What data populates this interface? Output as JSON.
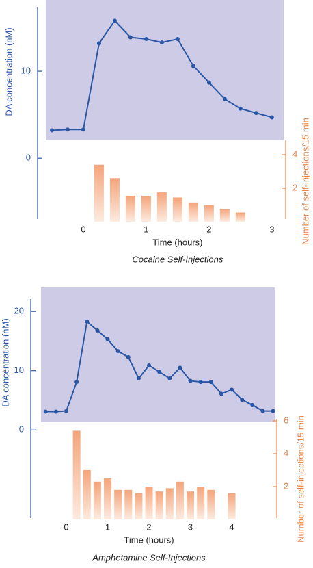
{
  "chart_data": [
    {
      "type": "combo",
      "title": "Cocaine Self-Injections",
      "x_label": "Time (hours)",
      "y_label": "DA concentration (nM)",
      "y2_label": "Number of self-injections/15 min",
      "xlim": [
        -0.75,
        3.1
      ],
      "xticks": [
        0,
        1,
        2,
        3
      ],
      "ylim": [
        -7.3,
        17.4
      ],
      "yticks": [
        0,
        10
      ],
      "y2lim": [
        0,
        4.9
      ],
      "y2ticks": [
        2,
        4
      ],
      "series": [
        {
          "type": "line",
          "color": "#2a56a6",
          "x": [
            -0.5,
            -0.25,
            0,
            0.25,
            0.5,
            0.75,
            1,
            1.25,
            1.5,
            1.75,
            2,
            2.25,
            2.5,
            2.75,
            3
          ],
          "values": [
            3.2,
            3.3,
            3.3,
            13.2,
            15.8,
            13.9,
            13.7,
            13.3,
            13.7,
            10.6,
            8.7,
            6.8,
            5.7,
            5.2,
            4.7
          ]
        },
        {
          "type": "bar",
          "axis": "y2",
          "color": "#f4a47a",
          "x": [
            0.25,
            0.5,
            0.75,
            1,
            1.25,
            1.5,
            1.75,
            2,
            2.25,
            2.5
          ],
          "values": [
            3.4,
            2.6,
            1.55,
            1.55,
            1.75,
            1.45,
            1.15,
            1.0,
            0.75,
            0.55
          ]
        }
      ]
    },
    {
      "type": "combo",
      "title": "Amphetamine Self-Injections",
      "x_label": "Time (hours)",
      "y_label": "DA concentration (nM)",
      "y2_label": "Number of self-injections/15 min",
      "xlim": [
        -0.85,
        5.1
      ],
      "xticks": [
        0,
        1,
        2,
        3,
        4
      ],
      "ylim": [
        -15.1,
        22.1
      ],
      "yticks": [
        0,
        10,
        20
      ],
      "y2lim": [
        0,
        6.1
      ],
      "y2ticks": [
        2,
        4,
        6
      ],
      "series": [
        {
          "type": "line",
          "color": "#2a56a6",
          "x": [
            -0.5,
            -0.25,
            0,
            0.25,
            0.5,
            0.75,
            1,
            1.25,
            1.5,
            1.75,
            2,
            2.25,
            2.5,
            2.75,
            3,
            3.25,
            3.5,
            3.75,
            4,
            4.25,
            4.5,
            4.75,
            5
          ],
          "values": [
            3.1,
            3.1,
            3.2,
            8.1,
            18.3,
            16.8,
            15.3,
            13.3,
            12.3,
            8.7,
            10.9,
            9.8,
            8.7,
            10.5,
            8.3,
            8.1,
            8.1,
            6.1,
            6.8,
            5.1,
            4.2,
            3.2,
            3.2
          ]
        },
        {
          "type": "bar",
          "axis": "y2",
          "color": "#f4a47a",
          "x": [
            0.25,
            0.5,
            0.75,
            1,
            1.25,
            1.5,
            1.75,
            2,
            2.25,
            2.5,
            2.75,
            3,
            3.25,
            3.5,
            4
          ],
          "values": [
            5.4,
            3.0,
            2.3,
            2.5,
            1.8,
            1.8,
            1.6,
            2.0,
            1.7,
            1.9,
            2.3,
            1.7,
            2.0,
            1.8,
            1.6
          ]
        }
      ]
    }
  ]
}
